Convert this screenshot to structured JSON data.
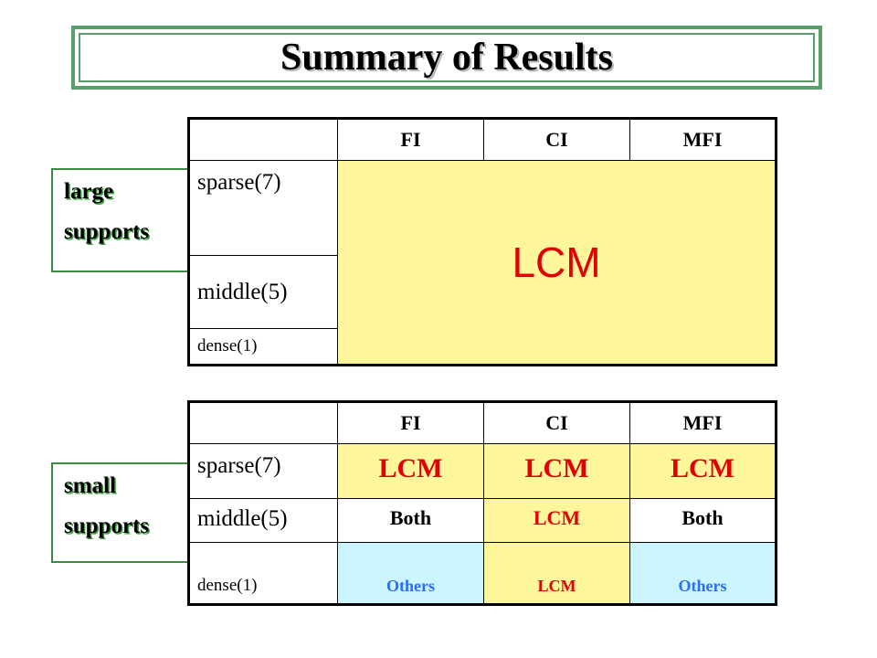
{
  "title": "Summary of Results",
  "supports": {
    "large": [
      "large",
      "supports"
    ],
    "small": [
      "small",
      "supports"
    ]
  },
  "columns": [
    "FI",
    "CI",
    "MFI"
  ],
  "rows": {
    "sparse": "sparse(7)",
    "middle": "middle(5)",
    "dense": "dense(1)"
  },
  "large_supports_table": {
    "merged_value": "LCM"
  },
  "small_supports_table": {
    "sparse": [
      "LCM",
      "LCM",
      "LCM"
    ],
    "middle": [
      "Both",
      "LCM",
      "Both"
    ],
    "dense": [
      "Others",
      "LCM",
      "Others"
    ]
  },
  "colors": {
    "lcm_bg": "#fdf69b",
    "lcm_text": "#e00000",
    "others_bg": "#ccf5ff",
    "others_text": "#2a6cff",
    "frame_green": "#5a9c6a"
  }
}
